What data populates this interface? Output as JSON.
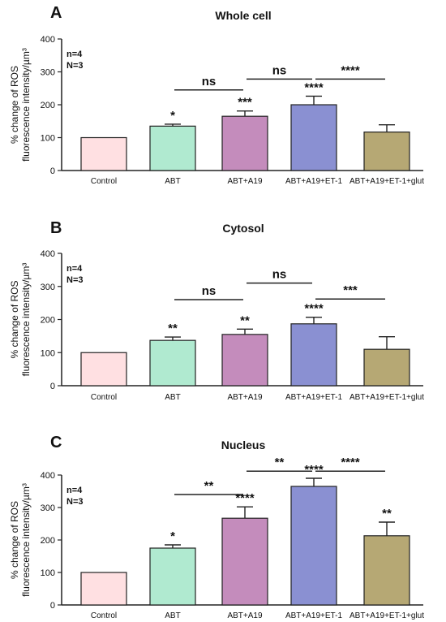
{
  "chart_data": [
    {
      "type": "bar",
      "panel_letter": "A",
      "title": "Whole cell",
      "ylabel": "% change of ROS\nfluorescence intensity/µm³",
      "ylim": [
        0,
        400
      ],
      "yticks": [
        0,
        100,
        200,
        300,
        400
      ],
      "categories": [
        "Control",
        "ABT",
        "ABT+A19",
        "ABT+A19+ET-1",
        "ABT+A19+ET-1+glut"
      ],
      "values": [
        100,
        135,
        165,
        200,
        117
      ],
      "errors": [
        0,
        6,
        16,
        26,
        22
      ],
      "significance": [
        "",
        "*",
        "***",
        "****",
        ""
      ],
      "comparisons": [
        {
          "from": 1,
          "to": 2,
          "label": "ns",
          "y": 245
        },
        {
          "from": 2,
          "to": 3,
          "label": "ns",
          "y": 278
        },
        {
          "from": 3,
          "to": 4,
          "label": "****",
          "y": 278
        }
      ],
      "annotations": [
        "n=4",
        "N=3"
      ],
      "colors": [
        "#ffe0e2",
        "#b0ead0",
        "#c48cbc",
        "#8a90d2",
        "#b6a874"
      ]
    },
    {
      "type": "bar",
      "panel_letter": "B",
      "title": "Cytosol",
      "ylabel": "% change of ROS\nfluorescence intensity/µm³",
      "ylim": [
        0,
        400
      ],
      "yticks": [
        0,
        100,
        200,
        300,
        400
      ],
      "categories": [
        "Control",
        "ABT",
        "ABT+A19",
        "ABT+A19+ET-1",
        "ABT+A19+ET-1+glut"
      ],
      "values": [
        100,
        137,
        155,
        187,
        110
      ],
      "errors": [
        0,
        10,
        16,
        20,
        38
      ],
      "significance": [
        "",
        "**",
        "**",
        "****",
        ""
      ],
      "comparisons": [
        {
          "from": 1,
          "to": 2,
          "label": "ns",
          "y": 260
        },
        {
          "from": 2,
          "to": 3,
          "label": "ns",
          "y": 310
        },
        {
          "from": 3,
          "to": 4,
          "label": "***",
          "y": 262
        }
      ],
      "annotations": [
        "n=4",
        "N=3"
      ],
      "colors": [
        "#ffe0e2",
        "#b0ead0",
        "#c48cbc",
        "#8a90d2",
        "#b6a874"
      ]
    },
    {
      "type": "bar",
      "panel_letter": "C",
      "title": "Nucleus",
      "ylabel": "% change of ROS\nfluorescence intensity/µm³",
      "ylim": [
        0,
        400
      ],
      "yticks": [
        0,
        100,
        200,
        300,
        400
      ],
      "categories": [
        "Control",
        "ABT",
        "ABT+A19",
        "ABT+A19+ET-1",
        "ABT+A19+ET-1+glut"
      ],
      "values": [
        100,
        175,
        267,
        365,
        213
      ],
      "errors": [
        0,
        10,
        35,
        25,
        42
      ],
      "significance": [
        "",
        "*",
        "****",
        "****",
        "**"
      ],
      "comparisons": [
        {
          "from": 1,
          "to": 2,
          "label": "**",
          "y": 340
        },
        {
          "from": 2,
          "to": 3,
          "label": "**",
          "y": 412
        },
        {
          "from": 3,
          "to": 4,
          "label": "****",
          "y": 412
        }
      ],
      "annotations": [
        "n=4",
        "N=3"
      ],
      "colors": [
        "#ffe0e2",
        "#b0ead0",
        "#c48cbc",
        "#8a90d2",
        "#b6a874"
      ]
    }
  ]
}
